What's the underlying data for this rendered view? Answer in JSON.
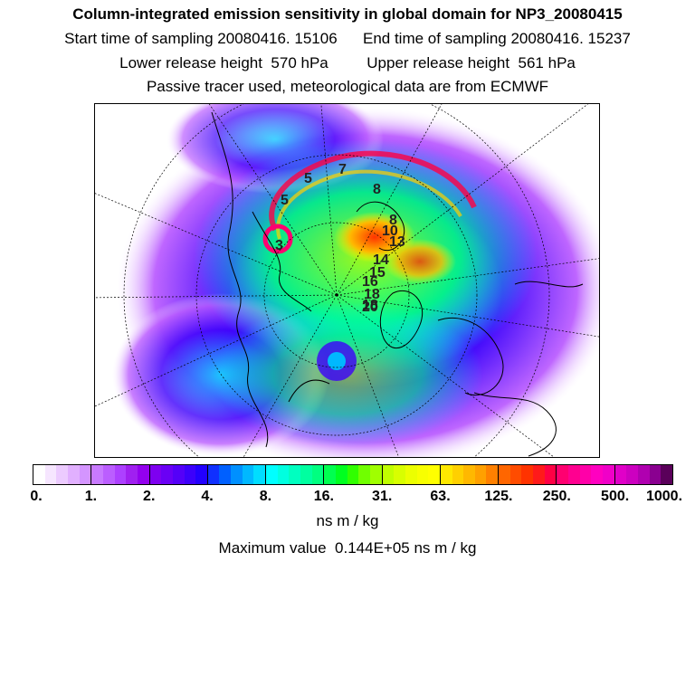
{
  "titles": {
    "line1": "Column-integrated emission sensitivity in global domain for NP3_20080415",
    "line2": "Start time of sampling 20080416. 15106      End time of sampling 20080416. 15237",
    "line3": "Lower release height  570 hPa         Upper release height  561 hPa",
    "line4": "Passive tracer used, meteorological data are from ECMWF"
  },
  "colorbar": {
    "tick_labels": [
      "0.",
      "1.",
      "2.",
      "4.",
      "8.",
      "16.",
      "31.",
      "63.",
      "125.",
      "250.",
      "500.",
      "1000."
    ],
    "segments": [
      [
        "#ffffff",
        "#f6e6ff",
        "#eccbff",
        "#e1b0ff",
        "#d495ff"
      ],
      [
        "#c87aff",
        "#bb5eff",
        "#ad40ff",
        "#a020f0",
        "#9300ee"
      ],
      [
        "#7e00f0",
        "#6a00f5",
        "#5400f8",
        "#3c00fb",
        "#2200ff"
      ],
      [
        "#1030ff",
        "#0060ff",
        "#0090ff",
        "#00b8ff",
        "#00ddff"
      ],
      [
        "#00ffff",
        "#00ffe0",
        "#00ffc0",
        "#00ffa0",
        "#00ff80"
      ],
      [
        "#00ff50",
        "#00ff20",
        "#30ff00",
        "#70ff00",
        "#a0ff00"
      ],
      [
        "#c0ff00",
        "#d8ff00",
        "#ecff00",
        "#f8ff00",
        "#ffff00"
      ],
      [
        "#ffe800",
        "#ffd000",
        "#ffb800",
        "#ffa000",
        "#ff8000"
      ],
      [
        "#ff6600",
        "#ff4c00",
        "#ff3300",
        "#ff1a1a",
        "#ff0044"
      ],
      [
        "#ff0070",
        "#ff0090",
        "#ff00a8",
        "#ff00c0",
        "#f000c8"
      ],
      [
        "#e000c8",
        "#cc00c0",
        "#b000b0",
        "#8a0090",
        "#5a005a"
      ]
    ]
  },
  "units": "ns m / kg",
  "max_value": "Maximum value  0.144E+05 ns m / kg",
  "map_labels": [
    "5",
    "7",
    "8",
    "5",
    "8",
    "10",
    "13",
    "3",
    "14",
    "15",
    "16",
    "18",
    "18",
    "20"
  ]
}
